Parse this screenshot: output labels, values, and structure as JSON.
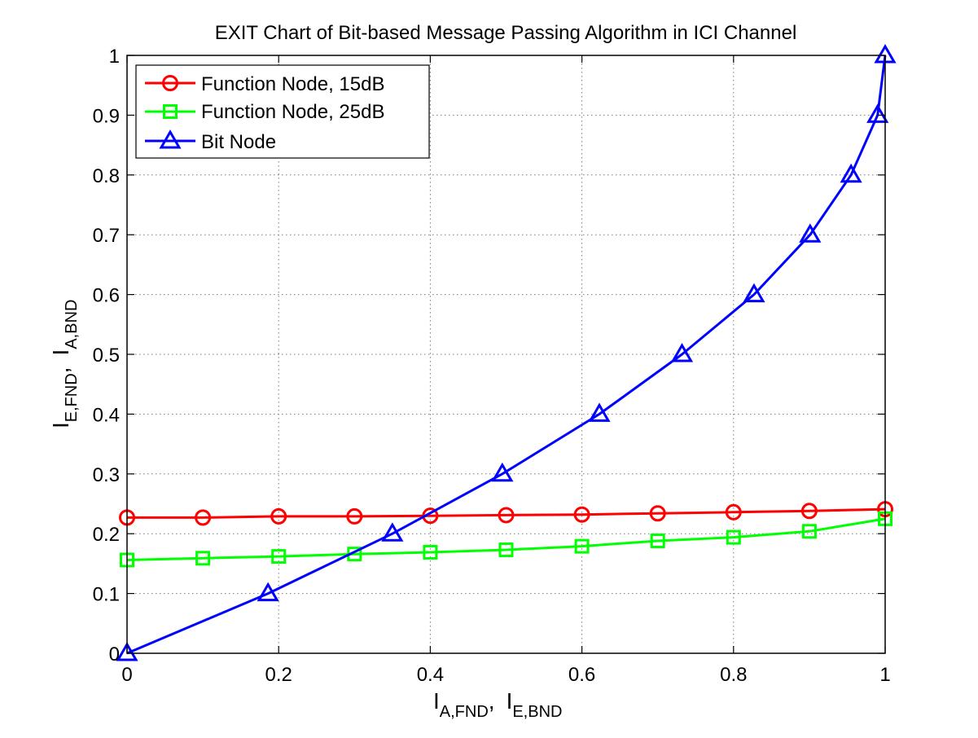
{
  "chart_data": {
    "type": "line",
    "title": "EXIT Chart of Bit-based Message Passing Algorithm in ICI Channel",
    "xlabel": {
      "main1": "I",
      "sub1": "A,FND",
      "sep": ",",
      "main2": "I",
      "sub2": "E,BND"
    },
    "ylabel": {
      "main1": "I",
      "sub1": "E,FND",
      "sep": ",",
      "main2": "I",
      "sub2": "A,BND"
    },
    "xlim": [
      0,
      1
    ],
    "ylim": [
      0,
      1
    ],
    "grid": true,
    "legend_position": "top-left",
    "x_ticks": [
      {
        "value": 0,
        "label": "0"
      },
      {
        "value": 0.2,
        "label": "0.2"
      },
      {
        "value": 0.4,
        "label": "0.4"
      },
      {
        "value": 0.6,
        "label": "0.6"
      },
      {
        "value": 0.8,
        "label": "0.8"
      },
      {
        "value": 1,
        "label": "1"
      }
    ],
    "y_ticks": [
      {
        "value": 0,
        "label": "0"
      },
      {
        "value": 0.1,
        "label": "0.1"
      },
      {
        "value": 0.2,
        "label": "0.2"
      },
      {
        "value": 0.3,
        "label": "0.3"
      },
      {
        "value": 0.4,
        "label": "0.4"
      },
      {
        "value": 0.5,
        "label": "0.5"
      },
      {
        "value": 0.6,
        "label": "0.6"
      },
      {
        "value": 0.7,
        "label": "0.7"
      },
      {
        "value": 0.8,
        "label": "0.8"
      },
      {
        "value": 0.9,
        "label": "0.9"
      },
      {
        "value": 1,
        "label": "1"
      }
    ],
    "series": [
      {
        "name": "Function Node, 15dB",
        "color": "#ff0000",
        "marker": "circle",
        "x": [
          0,
          0.1,
          0.2,
          0.3,
          0.4,
          0.5,
          0.6,
          0.7,
          0.8,
          0.9,
          1.0
        ],
        "y": [
          0.227,
          0.227,
          0.229,
          0.229,
          0.23,
          0.231,
          0.232,
          0.234,
          0.236,
          0.238,
          0.241
        ]
      },
      {
        "name": "Function Node, 25dB",
        "color": "#00ff00",
        "marker": "square",
        "x": [
          0,
          0.1,
          0.2,
          0.3,
          0.4,
          0.5,
          0.6,
          0.7,
          0.8,
          0.9,
          1.0
        ],
        "y": [
          0.156,
          0.159,
          0.162,
          0.166,
          0.169,
          0.173,
          0.179,
          0.188,
          0.194,
          0.204,
          0.225
        ]
      },
      {
        "name": "Bit Node",
        "color": "#0000ff",
        "marker": "triangle",
        "x": [
          0,
          0.186,
          0.35,
          0.495,
          0.623,
          0.732,
          0.827,
          0.901,
          0.955,
          0.99,
          1.0
        ],
        "y": [
          0,
          0.1,
          0.2,
          0.3,
          0.4,
          0.5,
          0.6,
          0.7,
          0.8,
          0.9,
          1.0
        ]
      }
    ]
  }
}
